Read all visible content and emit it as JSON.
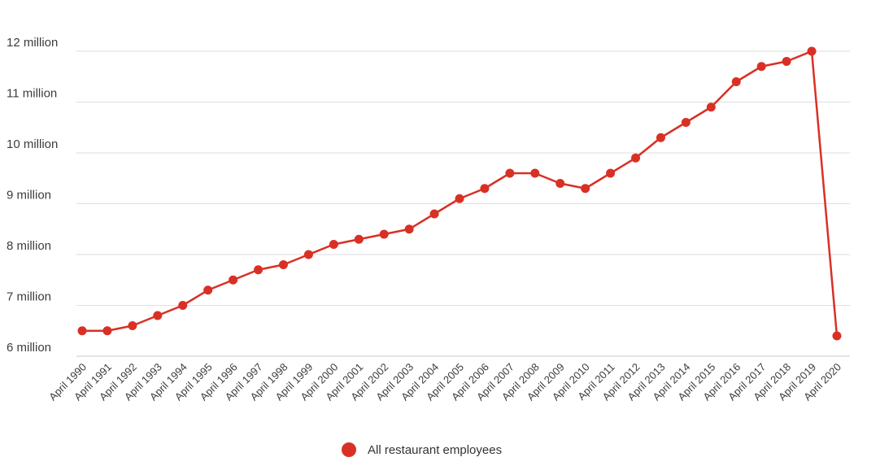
{
  "chart_data": {
    "type": "line",
    "title": "",
    "xlabel": "",
    "ylabel": "",
    "ylim": [
      6000000,
      12000000
    ],
    "y_ticks": [
      {
        "value": 6000000,
        "label": "6 million"
      },
      {
        "value": 7000000,
        "label": "7 million"
      },
      {
        "value": 8000000,
        "label": "8 million"
      },
      {
        "value": 9000000,
        "label": "9 million"
      },
      {
        "value": 10000000,
        "label": "10 million"
      },
      {
        "value": 11000000,
        "label": "11 million"
      },
      {
        "value": 12000000,
        "label": "12 million"
      }
    ],
    "grid": true,
    "legend_position": "bottom",
    "categories": [
      "April 1990",
      "April 1991",
      "April 1992",
      "April 1993",
      "April 1994",
      "April 1995",
      "April 1996",
      "April 1997",
      "April 1998",
      "April 1999",
      "April 2000",
      "April 2001",
      "April 2002",
      "April 2003",
      "April 2004",
      "April 2005",
      "April 2006",
      "April 2007",
      "April 2008",
      "April 2009",
      "April 2010",
      "April 2011",
      "April 2012",
      "April 2013",
      "April 2014",
      "April 2015",
      "April 2016",
      "April 2017",
      "April 2018",
      "April 2019",
      "April 2020"
    ],
    "series": [
      {
        "name": "All restaurant employees",
        "color": "#d93025",
        "values": [
          6500000,
          6500000,
          6600000,
          6800000,
          7000000,
          7300000,
          7500000,
          7700000,
          7800000,
          8000000,
          8200000,
          8300000,
          8400000,
          8500000,
          8800000,
          9100000,
          9300000,
          9600000,
          9600000,
          9400000,
          9300000,
          9600000,
          9900000,
          10300000,
          10600000,
          10900000,
          11400000,
          11700000,
          11800000,
          12000000,
          6400000
        ]
      }
    ]
  }
}
